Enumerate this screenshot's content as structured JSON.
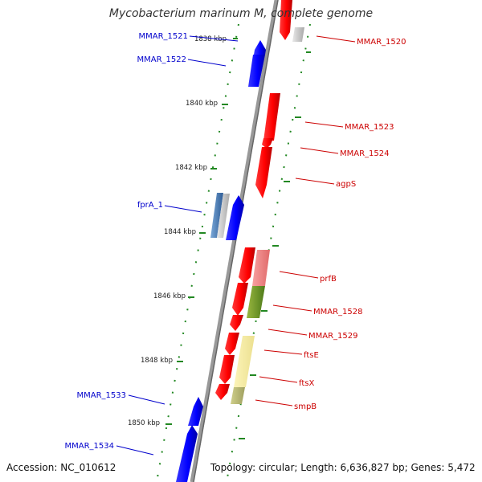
{
  "title": "Mycobacterium marinum M, complete genome",
  "accession": "Accession: NC_010612",
  "topology": "Topology: circular; Length: 6,636,827 bp; Genes: 5,472",
  "colors": {
    "forward": "#ff0000",
    "reverse": "#0000ff",
    "backbone": "#999999",
    "tick": "#228822",
    "forward_label": "#cc0000",
    "reverse_label": "#0000cc"
  },
  "scale_ticks": [
    {
      "kbp": 1838,
      "label": "1838 kbp"
    },
    {
      "kbp": 1840,
      "label": "1840 kbp"
    },
    {
      "kbp": 1842,
      "label": "1842 kbp"
    },
    {
      "kbp": 1844,
      "label": "1844 kbp"
    },
    {
      "kbp": 1846,
      "label": "1846 kbp"
    },
    {
      "kbp": 1848,
      "label": "1848 kbp"
    },
    {
      "kbp": 1850,
      "label": "1850 kbp"
    }
  ],
  "gene_labels": {
    "reverse": [
      "MMAR_1521",
      "MMAR_1522",
      "fprA_1",
      "MMAR_1533",
      "MMAR_1534"
    ],
    "forward": [
      "MMAR_1520",
      "MMAR_1523",
      "MMAR_1524",
      "agpS",
      "prfB",
      "MMAR_1528",
      "MMAR_1529",
      "ftsE",
      "ftsX",
      "smpB"
    ]
  }
}
